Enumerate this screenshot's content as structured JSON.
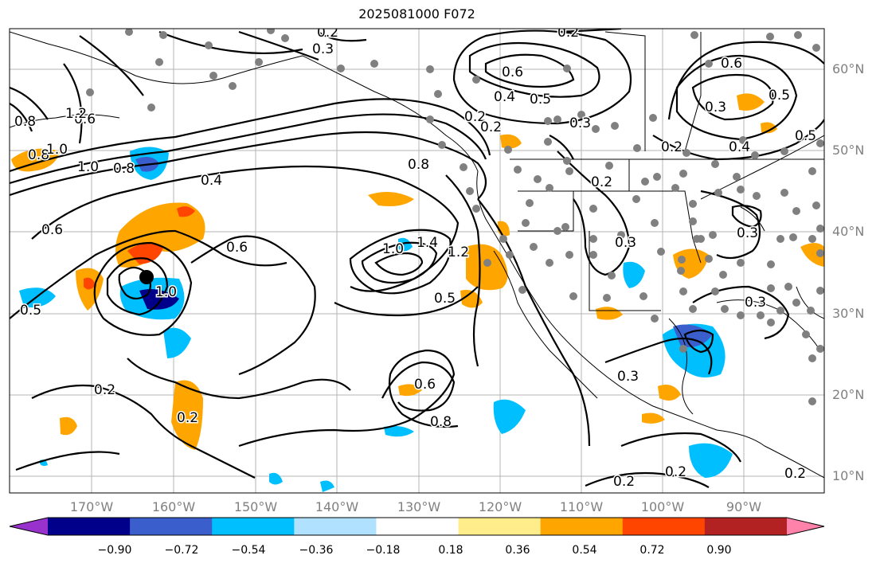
{
  "title": "2025081000 F072",
  "lat_labels": [
    "60°N",
    "50°N",
    "40°N",
    "30°N",
    "20°N",
    "10°N"
  ],
  "lon_labels": [
    "170°W",
    "160°W",
    "150°W",
    "140°W",
    "130°W",
    "120°W",
    "110°W",
    "100°W",
    "90°W"
  ],
  "colorbar": {
    "ticks": [
      "−0.90",
      "−0.72",
      "−0.54",
      "−0.36",
      "−0.18",
      "0.18",
      "0.36",
      "0.54",
      "0.72",
      "0.90"
    ],
    "colors": [
      "#9932cc",
      "#00008b",
      "#3a5fcd",
      "#00bfff",
      "#b0e2ff",
      "#ffffff",
      "#ffec8b",
      "#ffa500",
      "#ff4500",
      "#b22222",
      "#ff82ab"
    ]
  },
  "contour_labels": [
    "0.2",
    "0.3",
    "0.2",
    "0.6",
    "0.8",
    "1.2",
    "0.8",
    "1.0",
    "1.0",
    "0.8",
    "0.4",
    "0.6",
    "0.6",
    "1.0",
    "1.4",
    "1.2",
    "0.5",
    "0.8",
    "0.2",
    "0.4",
    "0.5",
    "0.6",
    "0.3",
    "0.2",
    "0.2",
    "0.3",
    "0.3",
    "0.6",
    "0.8",
    "0.2",
    "1.0",
    "0.5",
    "0.4",
    "0.2",
    "0.3",
    "0.3",
    "0.6",
    "0.5",
    "0.2",
    "0.2",
    "0.2",
    "0.2",
    "0.3",
    "0.5"
  ],
  "colors": {
    "contour": "#000000",
    "marker": "#808080",
    "grid": "#b4b4b4",
    "axis_text": "#808080"
  }
}
